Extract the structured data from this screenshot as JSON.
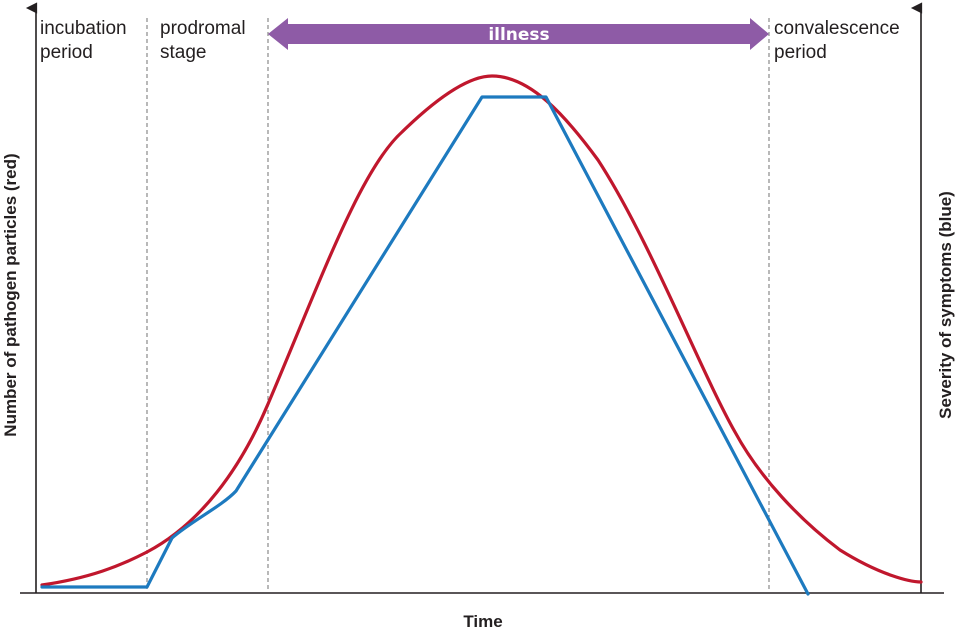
{
  "stages": {
    "incubation": {
      "line1": "incubation",
      "line2": "period"
    },
    "prodromal": {
      "line1": "prodromal",
      "line2": "stage"
    },
    "convalescence": {
      "line1": "convalescence",
      "line2": "period"
    }
  },
  "banner": {
    "label": "illness",
    "color": "#8e5ba6"
  },
  "axes": {
    "x_title": "Time",
    "y_left_title": "Number of pathogen particles (red)",
    "y_right_title": "Severity of symptoms  (blue)"
  },
  "colors": {
    "pathogen_curve": "#c0172d",
    "symptom_curve": "#1d7abf",
    "axis": "#231f20",
    "divider": "#8a8a8a"
  }
}
